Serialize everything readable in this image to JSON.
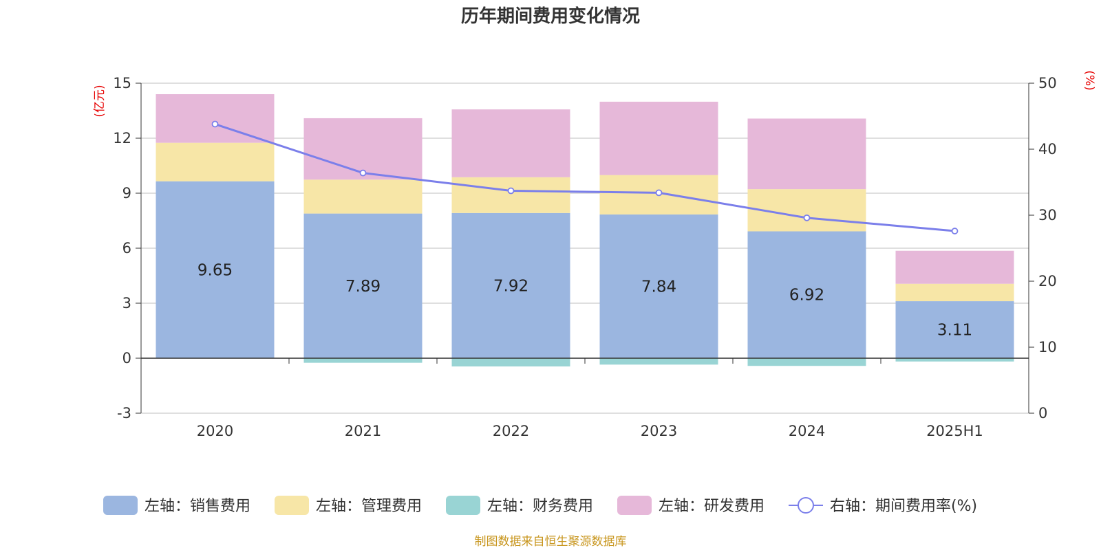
{
  "chart_data": {
    "type": "bar",
    "stacked": true,
    "title": "历年期间费用变化情况",
    "categories": [
      "2020",
      "2021",
      "2022",
      "2023",
      "2024",
      "2025H1"
    ],
    "y_left": {
      "unit": "(亿元)",
      "min": -3,
      "max": 15,
      "ticks": [
        "-3",
        "0",
        "3",
        "6",
        "9",
        "12",
        "15"
      ]
    },
    "y_right": {
      "unit": "(%)",
      "min": 0,
      "max": 50,
      "ticks": [
        "0",
        "10",
        "20",
        "30",
        "40",
        "50"
      ]
    },
    "grid": true,
    "legend_position": "bottom",
    "series": [
      {
        "name": "左轴：销售费用",
        "axis": "left",
        "type": "bar",
        "color": "#9bb6e0",
        "values": [
          9.65,
          7.89,
          7.92,
          7.84,
          6.92,
          3.11
        ],
        "labels": [
          "9.65",
          "7.89",
          "7.92",
          "7.84",
          "6.92",
          "3.11"
        ]
      },
      {
        "name": "左轴：管理费用",
        "axis": "left",
        "type": "bar",
        "color": "#f7e6a7",
        "values": [
          2.1,
          1.85,
          1.95,
          2.15,
          2.3,
          0.95
        ]
      },
      {
        "name": "左轴：财务费用",
        "axis": "left",
        "type": "bar",
        "color": "#99d4d4",
        "values": [
          0,
          -0.25,
          -0.45,
          -0.35,
          -0.42,
          -0.18
        ]
      },
      {
        "name": "左轴：研发费用",
        "axis": "left",
        "type": "bar",
        "color": "#e6b8d9",
        "values": [
          2.65,
          3.35,
          3.7,
          4.0,
          3.85,
          1.8
        ]
      },
      {
        "name": "右轴：期间费用率(%)",
        "axis": "right",
        "type": "line",
        "color": "#7b7fea",
        "values": [
          43.8,
          36.4,
          33.7,
          33.4,
          29.6,
          27.6
        ]
      }
    ]
  },
  "footer": {
    "source": "制图数据来自恒生聚源数据库"
  }
}
